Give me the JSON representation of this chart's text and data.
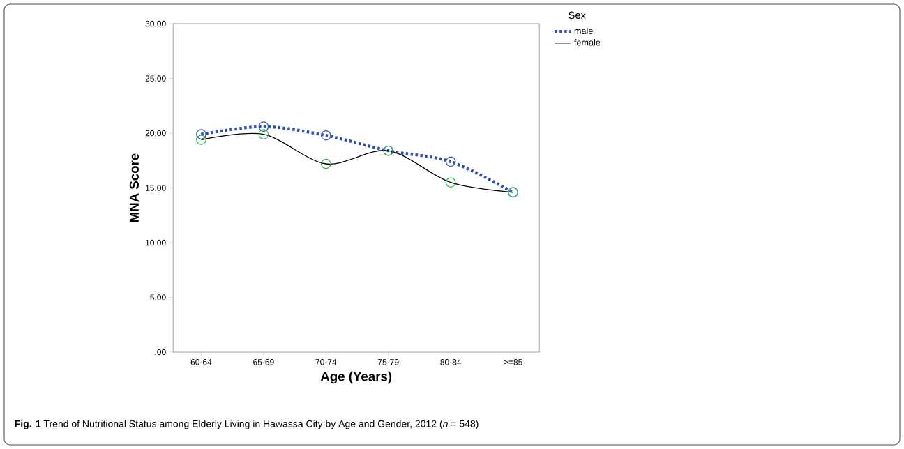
{
  "chart_data": {
    "type": "line",
    "xlabel": "Age (Years)",
    "ylabel": "MNA Score",
    "legend_title": "Sex",
    "categories": [
      "60-64",
      "65-69",
      "70-74",
      "75-79",
      "80-84",
      ">=85"
    ],
    "series": [
      {
        "name": "male",
        "color": "#3050b8",
        "line_style": "dotted",
        "values": [
          19.9,
          20.6,
          19.8,
          18.4,
          17.4,
          14.6
        ]
      },
      {
        "name": "female",
        "color": "#000000",
        "colors": [
          "#33b54a",
          "#33b54a",
          "#33b54a",
          "#33b54a",
          "#33b54a",
          "#33b54a"
        ],
        "line_style": "solid",
        "values": [
          19.4,
          19.9,
          17.2,
          18.4,
          15.5,
          14.6
        ]
      }
    ],
    "ylim": [
      0,
      30
    ],
    "yticks": [
      {
        "value": 0,
        "label": ".00"
      },
      {
        "value": 5,
        "label": "5.00"
      },
      {
        "value": 10,
        "label": "10.00"
      },
      {
        "value": 15,
        "label": "15.00"
      },
      {
        "value": 20,
        "label": "20.00"
      },
      {
        "value": 25,
        "label": "25.00"
      },
      {
        "value": 30,
        "label": "30.00"
      }
    ],
    "marker": "circle",
    "grid": false,
    "legend": "top right",
    "annotations": [
      "**Fig. 1** Trend of Nutritional Status among Elderly Living in Hawassa City by Age and Gender, 2012 (*n* = 548)"
    ]
  }
}
